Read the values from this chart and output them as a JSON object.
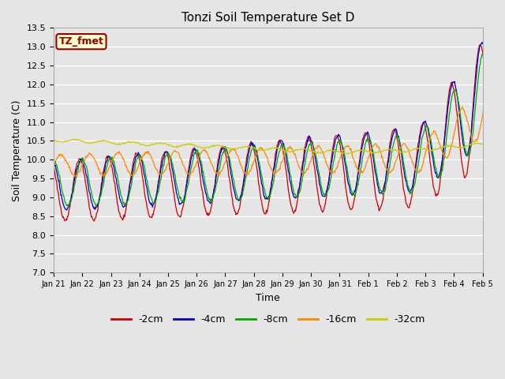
{
  "title": "Tonzi Soil Temperature Set D",
  "xlabel": "Time",
  "ylabel": "Soil Temperature (C)",
  "ylim": [
    7.0,
    13.5
  ],
  "yticks": [
    7.0,
    7.5,
    8.0,
    8.5,
    9.0,
    9.5,
    10.0,
    10.5,
    11.0,
    11.5,
    12.0,
    12.5,
    13.0,
    13.5
  ],
  "legend_labels": [
    "-2cm",
    "-4cm",
    "-8cm",
    "-16cm",
    "-32cm"
  ],
  "legend_colors": [
    "#cc0000",
    "#0000cc",
    "#00aa00",
    "#ff8800",
    "#cccc00"
  ],
  "label_box_text": "TZ_fmet",
  "label_box_color": "#ffffcc",
  "label_box_border": "#990000",
  "xtick_labels": [
    "Jan 21",
    "Jan 22",
    "Jan 23",
    "Jan 24",
    "Jan 25",
    "Jan 26",
    "Jan 27",
    "Jan 28",
    "Jan 29",
    "Jan 30",
    "Jan 31",
    "Feb 1",
    "Feb 2",
    "Feb 3",
    "Feb 4",
    "Feb 5"
  ],
  "duration_days": 15.0
}
